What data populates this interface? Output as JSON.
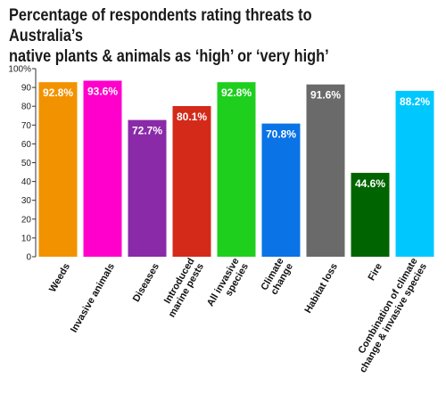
{
  "chart_data": {
    "type": "bar",
    "title_lines": [
      "Percentage of respondents rating threats to Australia’s",
      "native plants & animals as ‘high’ or ‘very high’"
    ],
    "categories": [
      [
        "Weeds"
      ],
      [
        "Invasive animals"
      ],
      [
        "Diseases"
      ],
      [
        "Introduced",
        "marine pests"
      ],
      [
        "All invasive",
        "species"
      ],
      [
        "Climate",
        "change"
      ],
      [
        "Habitat loss"
      ],
      [
        "Fire"
      ],
      [
        "Combination of climate",
        "change & invasive species"
      ]
    ],
    "values": [
      92.8,
      93.6,
      72.7,
      80.1,
      92.8,
      70.8,
      91.6,
      44.6,
      88.2
    ],
    "value_labels": [
      "92.8%",
      "93.6%",
      "72.7%",
      "80.1%",
      "92.8%",
      "70.8%",
      "91.6%",
      "44.6%",
      "88.2%"
    ],
    "colors": [
      "#f39200",
      "#ff00cc",
      "#8a2aa8",
      "#d42a1a",
      "#1ecf1e",
      "#0a73e6",
      "#6a6a6a",
      "#006400",
      "#00c8ff"
    ],
    "yticks": [
      "0",
      "10",
      "20",
      "30",
      "40",
      "50",
      "60",
      "70",
      "80",
      "90",
      "100%"
    ],
    "ylim": [
      0,
      100
    ],
    "xlabel": "",
    "ylabel": "",
    "grid": false,
    "legend": "none"
  }
}
